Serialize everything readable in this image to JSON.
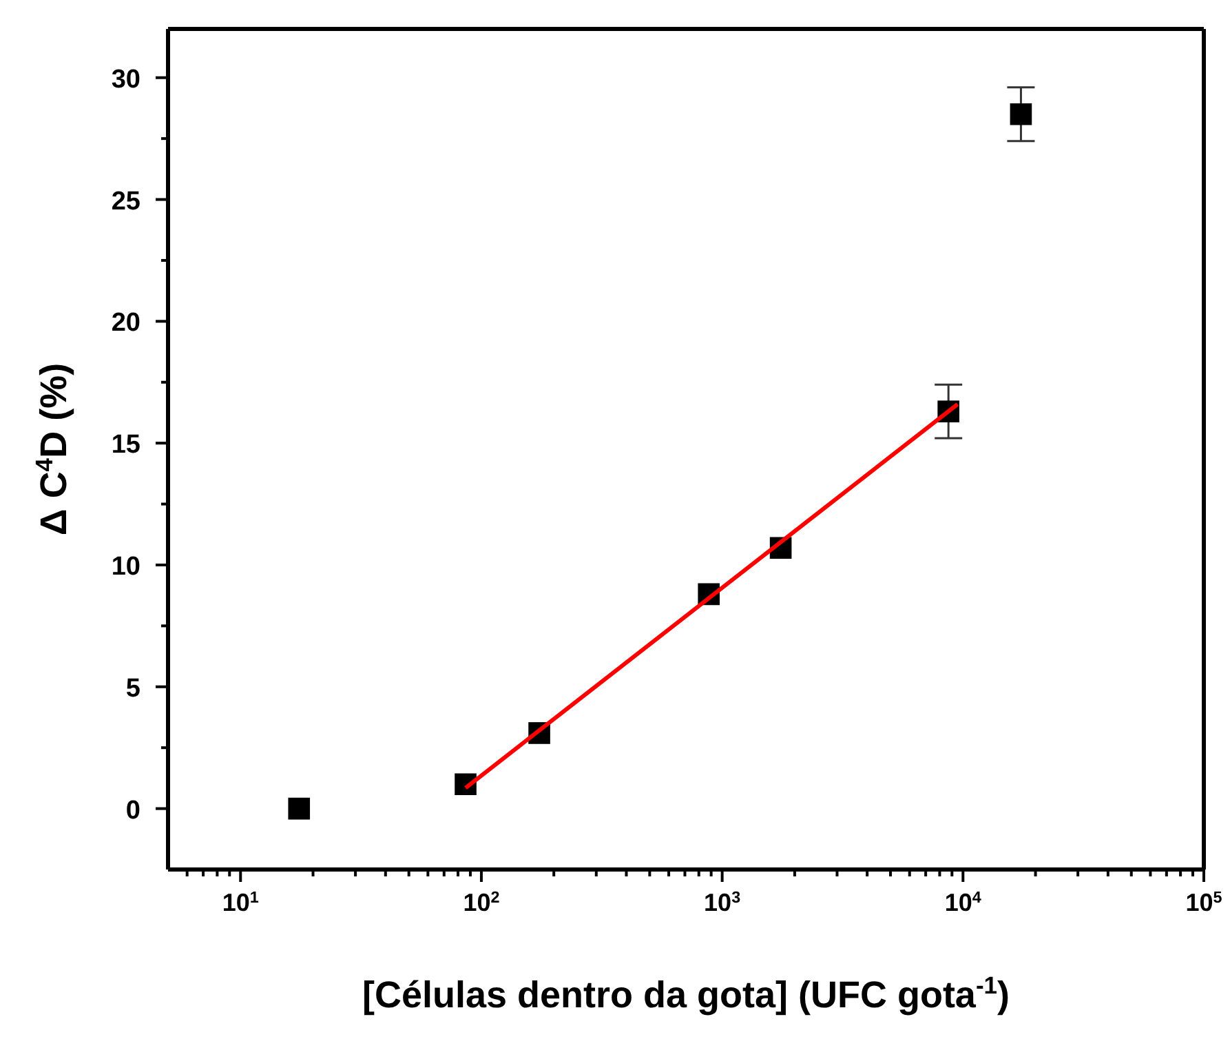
{
  "chart_data": {
    "type": "scatter",
    "xlabel": "[Células dentro da gota] (UFC gota$^{-1}$)",
    "ylabel": "Δ C$^{4}$D (%)",
    "log": "x",
    "x": [
      17.5,
      86,
      174,
      880,
      1750,
      8700,
      17400
    ],
    "series": [
      {
        "marker": "square",
        "color": "#000000",
        "values": [
          0,
          1.0,
          3.1,
          8.8,
          10.7,
          16.3,
          28.5
        ],
        "errors": [
          null,
          null,
          null,
          null,
          null,
          1.1,
          1.1
        ]
      },
      {
        "type": "line",
        "color": "#ff0000",
        "x": [
          86,
          9500
        ],
        "values": [
          0.85,
          16.6
        ]
      }
    ],
    "xlim": [
      5,
      100000
    ],
    "xticks": [
      {
        "value": 6,
        "label": null
      },
      {
        "value": 7,
        "label": null
      },
      {
        "value": 8,
        "label": null
      },
      {
        "value": 9,
        "label": null
      },
      {
        "value": 10,
        "label": "10$^{1}$"
      },
      {
        "value": 20,
        "label": null
      },
      {
        "value": 30,
        "label": null
      },
      {
        "value": 40,
        "label": null
      },
      {
        "value": 50,
        "label": null
      },
      {
        "value": 60,
        "label": null
      },
      {
        "value": 70,
        "label": null
      },
      {
        "value": 80,
        "label": null
      },
      {
        "value": 90,
        "label": null
      },
      {
        "value": 100,
        "label": "10$^{2}$"
      },
      {
        "value": 200,
        "label": null
      },
      {
        "value": 300,
        "label": null
      },
      {
        "value": 400,
        "label": null
      },
      {
        "value": 500,
        "label": null
      },
      {
        "value": 600,
        "label": null
      },
      {
        "value": 700,
        "label": null
      },
      {
        "value": 800,
        "label": null
      },
      {
        "value": 900,
        "label": null
      },
      {
        "value": 1000,
        "label": "10$^{3}$"
      },
      {
        "value": 2000,
        "label": null
      },
      {
        "value": 3000,
        "label": null
      },
      {
        "value": 4000,
        "label": null
      },
      {
        "value": 5000,
        "label": null
      },
      {
        "value": 6000,
        "label": null
      },
      {
        "value": 7000,
        "label": null
      },
      {
        "value": 8000,
        "label": null
      },
      {
        "value": 9000,
        "label": null
      },
      {
        "value": 10000,
        "label": "10$^{4}$"
      },
      {
        "value": 20000,
        "label": null
      },
      {
        "value": 30000,
        "label": null
      },
      {
        "value": 40000,
        "label": null
      },
      {
        "value": 50000,
        "label": null
      },
      {
        "value": 60000,
        "label": null
      },
      {
        "value": 70000,
        "label": null
      },
      {
        "value": 80000,
        "label": null
      },
      {
        "value": 90000,
        "label": null
      },
      {
        "value": 100000,
        "label": "10$^{5}$"
      }
    ],
    "ylim": [
      -2.5,
      32
    ],
    "yticks": [
      0,
      {
        "value": 2.5,
        "label": null
      },
      5,
      {
        "value": 7.5,
        "label": null
      },
      10,
      {
        "value": 12.5,
        "label": null
      },
      15,
      {
        "value": 17.5,
        "label": null
      },
      20,
      {
        "value": 22.5,
        "label": null
      },
      25,
      {
        "value": 27.5,
        "label": null
      },
      30
    ]
  }
}
